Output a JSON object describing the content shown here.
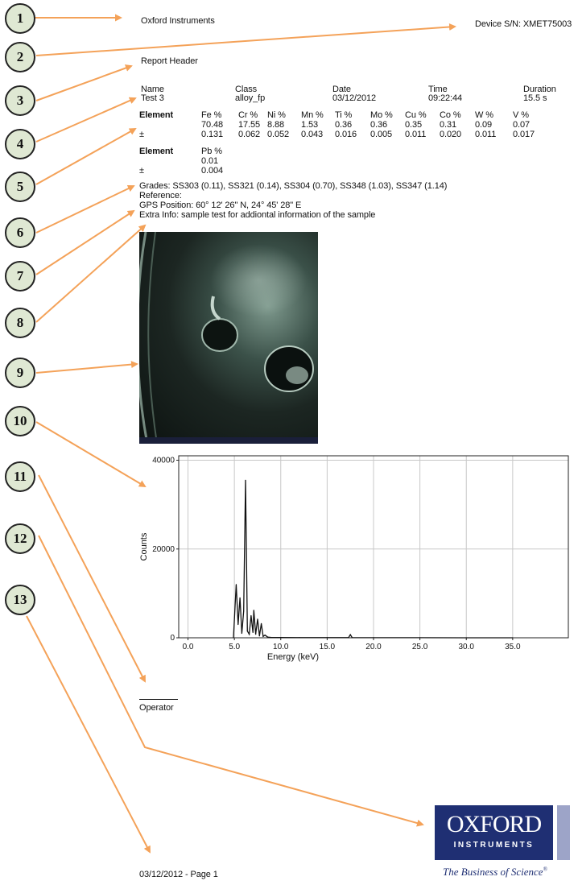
{
  "header": {
    "company": "Oxford Instruments",
    "device": "Device S/N: XMET75003",
    "report_header": "Report Header"
  },
  "meta": {
    "name_label": "Name",
    "name_value": "Test 3",
    "class_label": "Class",
    "class_value": "alloy_fp",
    "date_label": "Date",
    "date_value": "03/12/2012",
    "time_label": "Time",
    "time_value": "09:22:44",
    "duration_label": "Duration",
    "duration_value": "15.5 s"
  },
  "elements": {
    "label": "Element",
    "pm": "±",
    "row1": [
      {
        "name": "Fe %",
        "value": "70.48",
        "err": "0.131"
      },
      {
        "name": "Cr %",
        "value": "17.55",
        "err": "0.062"
      },
      {
        "name": "Ni %",
        "value": "8.88",
        "err": "0.052"
      },
      {
        "name": "Mn %",
        "value": "1.53",
        "err": "0.043"
      },
      {
        "name": "Ti %",
        "value": "0.36",
        "err": "0.016"
      },
      {
        "name": "Mo %",
        "value": "0.36",
        "err": "0.005"
      },
      {
        "name": "Cu %",
        "value": "0.35",
        "err": "0.011"
      },
      {
        "name": "Co %",
        "value": "0.31",
        "err": "0.020"
      },
      {
        "name": "W %",
        "value": "0.09",
        "err": "0.011"
      },
      {
        "name": "V %",
        "value": "0.07",
        "err": "0.017"
      }
    ],
    "row2": [
      {
        "name": "Pb %",
        "value": "0.01",
        "err": "0.004"
      }
    ]
  },
  "info": {
    "grades": "Grades: SS303 (0.11), SS321 (0.14), SS304 (0.70), SS348 (1.03), SS347 (1.14)",
    "reference": "Reference:",
    "gps": "GPS Position: 60° 12' 26\" N, 24° 45' 28\" E",
    "extra": "Extra Info: sample test for addiontal information of the sample"
  },
  "callouts": [
    "1",
    "2",
    "3",
    "4",
    "5",
    "6",
    "7",
    "8",
    "9",
    "10",
    "11",
    "12",
    "13"
  ],
  "operator_label": "Operator",
  "footer": "03/12/2012 - Page 1",
  "logo": {
    "word": "OXFORD",
    "sub": "INSTRUMENTS",
    "tagline": "The Business of Science",
    "box_color": "#1f2f73"
  },
  "colors": {
    "arrow": "#f4a259",
    "callout_fill": "#dfe8d3"
  },
  "chart_data": {
    "type": "line",
    "xlabel": "Energy (keV)",
    "ylabel": "Counts",
    "xlim": [
      -1,
      41
    ],
    "ylim": [
      0,
      41000
    ],
    "x_ticks": [
      "0.0",
      "5.0",
      "10.0",
      "15.0",
      "20.0",
      "25.0",
      "30.0",
      "35.0"
    ],
    "x_tick_values": [
      0,
      5,
      10,
      15,
      20,
      25,
      30,
      35
    ],
    "y_ticks": [
      "0",
      "20000",
      "40000"
    ],
    "y_tick_values": [
      0,
      20000,
      40000
    ],
    "grid": true,
    "series": [
      {
        "x": [
          4.9,
          5.2,
          5.4,
          5.6,
          5.8,
          6.0,
          6.2,
          6.4,
          6.6,
          6.8,
          7.0,
          7.1,
          7.3,
          7.5,
          7.7,
          7.9,
          8.1,
          8.3,
          8.6,
          9.0,
          10.0,
          12.0,
          15.0,
          17.3,
          17.5,
          17.7,
          20.0,
          25.0,
          30.0,
          35.0
        ],
        "y": [
          0,
          12000,
          3000,
          9000,
          1000,
          6000,
          35500,
          1500,
          800,
          5000,
          1200,
          6200,
          800,
          4200,
          400,
          3200,
          300,
          600,
          150,
          80,
          50,
          40,
          30,
          30,
          700,
          30,
          20,
          10,
          5,
          0
        ]
      }
    ]
  }
}
